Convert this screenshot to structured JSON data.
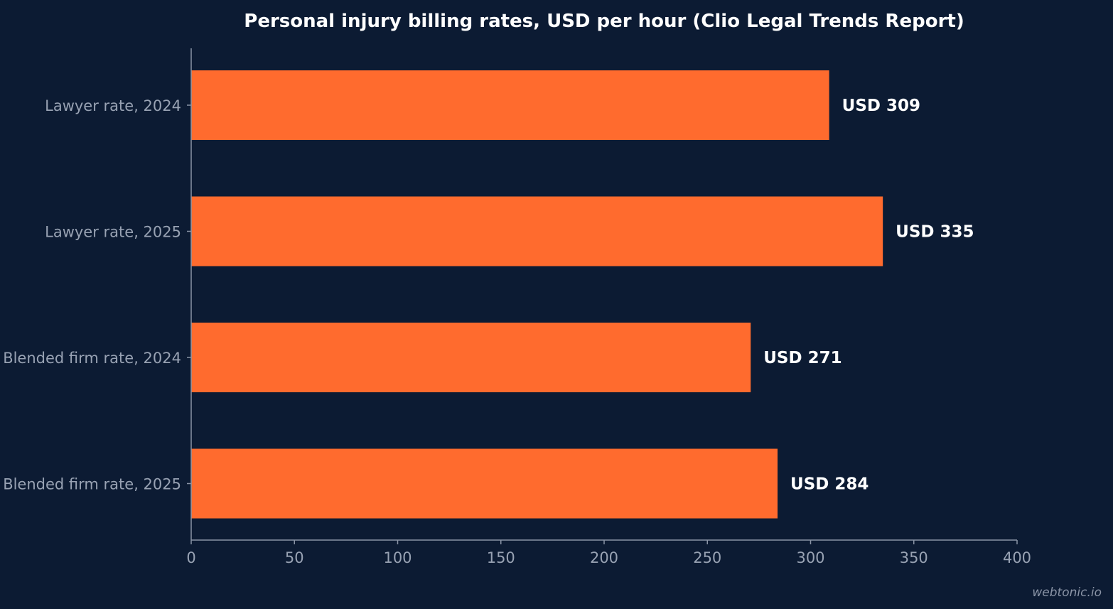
{
  "chart_data": {
    "type": "bar",
    "orientation": "horizontal",
    "title": "Personal injury billing rates, USD per hour (Clio Legal Trends Report)",
    "categories": [
      "Lawyer rate, 2024",
      "Lawyer rate, 2025",
      "Blended firm rate, 2024",
      "Blended firm rate, 2025"
    ],
    "values": [
      309,
      335,
      271,
      284
    ],
    "value_labels": [
      "USD 309",
      "USD 335",
      "USD 271",
      "USD 284"
    ],
    "xlabel": "",
    "ylabel": "",
    "xlim": [
      0,
      400
    ],
    "x_ticks": [
      0,
      50,
      100,
      150,
      200,
      250,
      300,
      350,
      400
    ],
    "x_tick_labels": [
      "0",
      "50",
      "100",
      "150",
      "200",
      "250",
      "300",
      "350",
      "400"
    ],
    "grid": false,
    "legend": "none"
  },
  "watermark": "webtonic.io",
  "colors": {
    "background": "#0c1b33",
    "bar": "#ff6b2e",
    "axis": "#8a94a6",
    "title": "#ffffff",
    "value_label": "#ffffff",
    "tick_label": "#98a2b3"
  }
}
